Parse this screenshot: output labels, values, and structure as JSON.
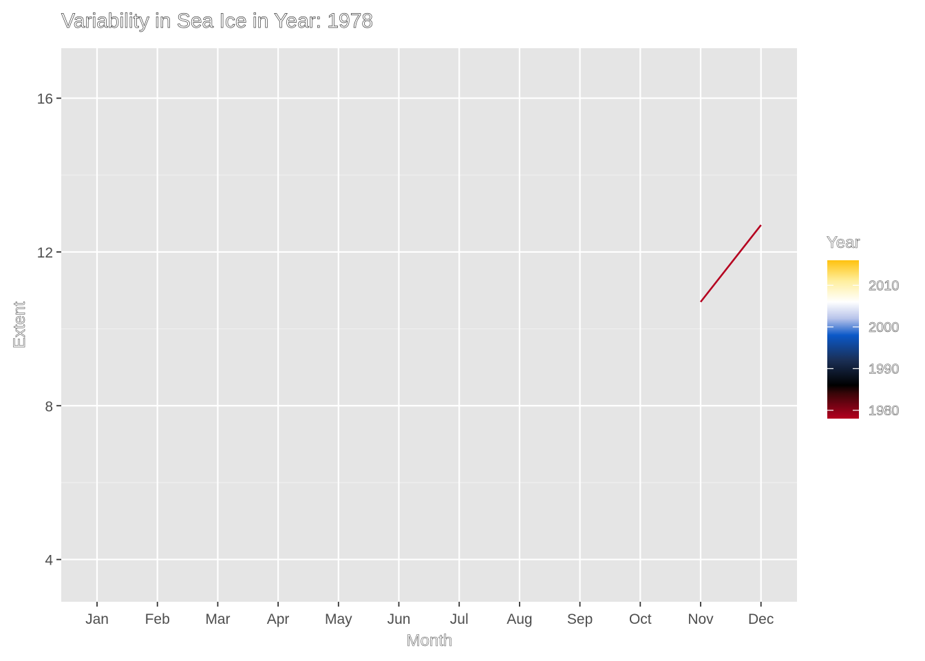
{
  "chart_data": {
    "type": "line",
    "title": "Variability in Sea Ice in Year: 1978",
    "xlabel": "Month",
    "ylabel": "Extent",
    "categories": [
      "Jan",
      "Feb",
      "Mar",
      "Apr",
      "May",
      "Jun",
      "Jul",
      "Aug",
      "Sep",
      "Oct",
      "Nov",
      "Dec"
    ],
    "ylim": [
      2.9,
      17.3
    ],
    "yticks": [
      4,
      8,
      12,
      16
    ],
    "grid": true,
    "series": [
      {
        "color": "#b5001f",
        "points": [
          {
            "x": "Nov",
            "y": 10.7
          },
          {
            "x": "Dec",
            "y": 12.7
          }
        ]
      }
    ],
    "legend": {
      "title": "Year",
      "placement": "right",
      "type": "colorbar",
      "range": [
        1978,
        2016
      ],
      "ticks": [
        1980,
        1990,
        2000,
        2010
      ],
      "colors": [
        {
          "value": 1978,
          "color": "#b5001f"
        },
        {
          "value": 1984,
          "color": "#3a0508"
        },
        {
          "value": 1986,
          "color": "#000000"
        },
        {
          "value": 1992,
          "color": "#1a2f55"
        },
        {
          "value": 1998,
          "color": "#0b58c8"
        },
        {
          "value": 2002,
          "color": "#b7c3ea"
        },
        {
          "value": 2006,
          "color": "#ffffff"
        },
        {
          "value": 2011,
          "color": "#ffef9e"
        },
        {
          "value": 2016,
          "color": "#ffc20f"
        }
      ]
    }
  }
}
